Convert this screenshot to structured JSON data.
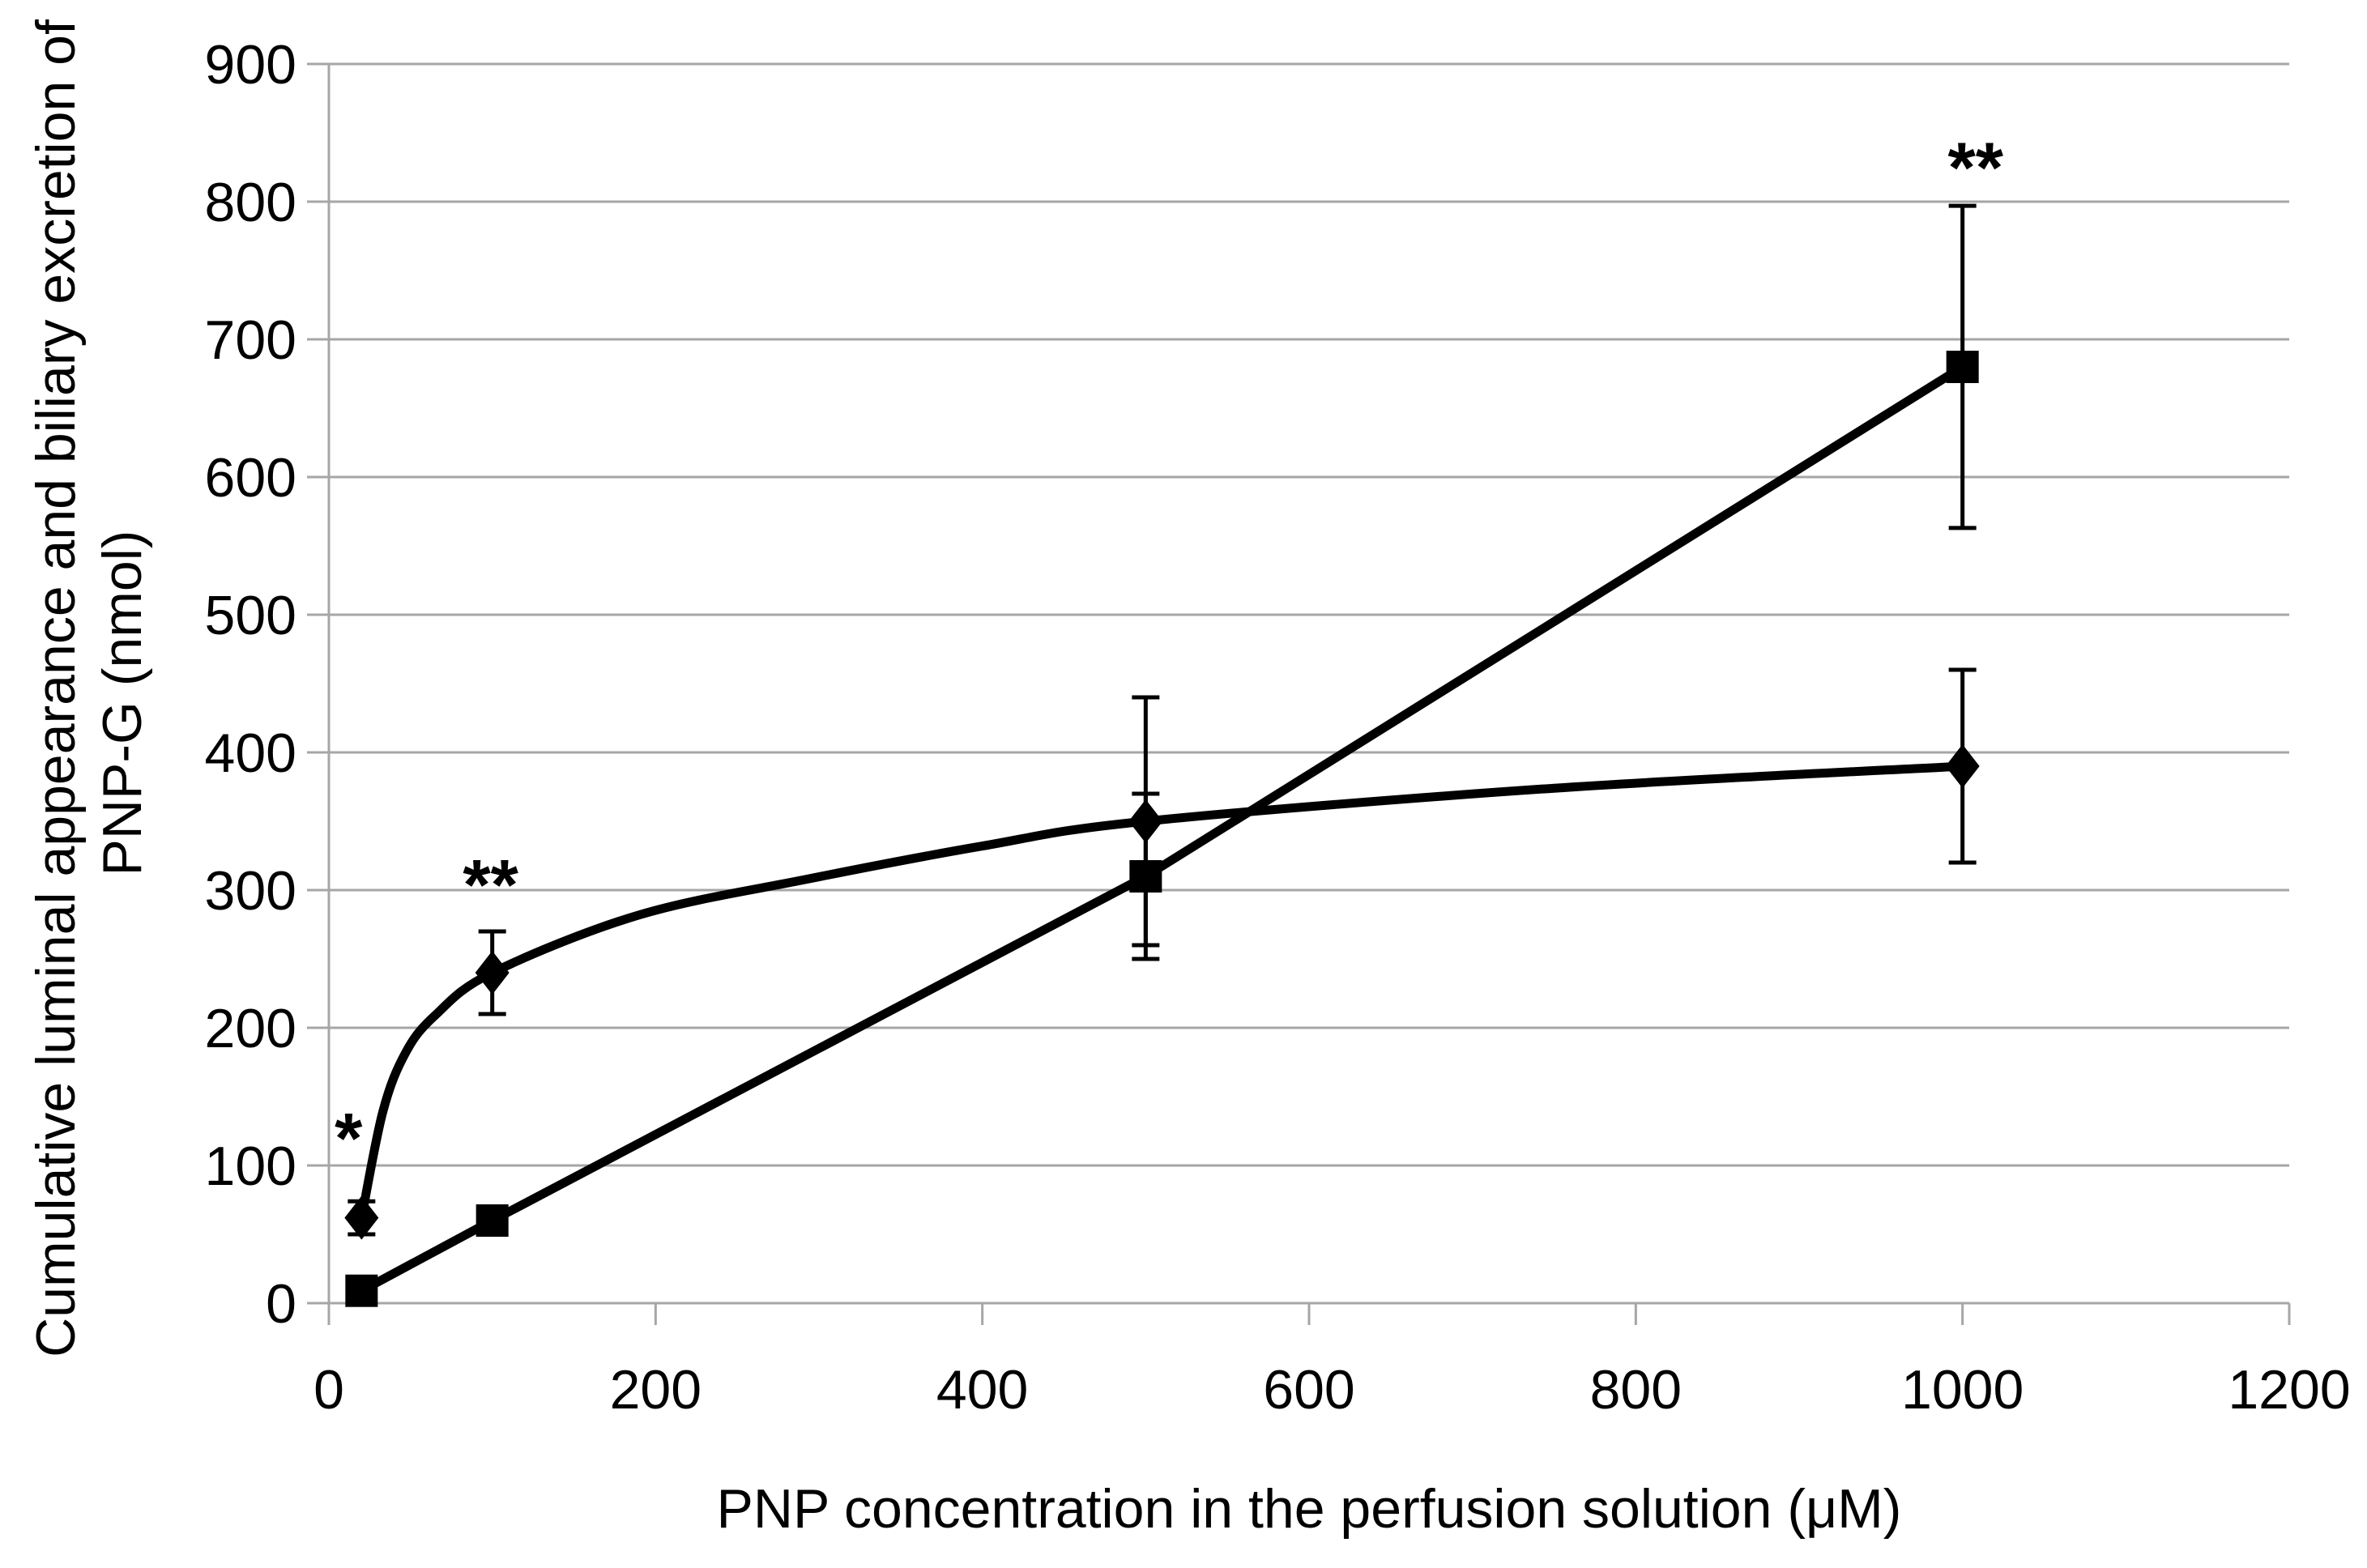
{
  "chart_data": {
    "type": "line",
    "title": "",
    "xlabel": "PNP concentration in the perfusion solution (μM)",
    "ylabel": "Cumulative luminal appearance and biliary excretion of PNP-G (nmol)",
    "ylabel_line1": "Cumulative luminal appearance and biliary excretion of",
    "ylabel_line2": "PNP-G (nmol)",
    "xlim": [
      0,
      1200
    ],
    "ylim": [
      0,
      900
    ],
    "x_ticks": [
      0,
      200,
      400,
      600,
      800,
      1000,
      1200
    ],
    "y_ticks": [
      0,
      100,
      200,
      300,
      400,
      500,
      600,
      700,
      800,
      900
    ],
    "grid": "horizontal-only",
    "legend": "none",
    "series": [
      {
        "name": "diamond-series",
        "marker": "diamond",
        "line_style": "smooth",
        "x": [
          20,
          100,
          500,
          1000
        ],
        "y": [
          62,
          240,
          350,
          390
        ],
        "error_plus": [
          12,
          30,
          90,
          70
        ],
        "error_minus": [
          12,
          30,
          90,
          70
        ],
        "curve_samples_x": [
          20,
          33,
          47,
          65,
          100,
          190,
          293,
          400,
          500,
          750,
          1000
        ],
        "curve_samples_y": [
          62,
          139,
          182,
          209,
          240,
          282,
          308,
          332,
          350,
          374,
          390
        ]
      },
      {
        "name": "square-series",
        "marker": "square",
        "line_style": "straight",
        "x": [
          20,
          100,
          500,
          1000
        ],
        "y": [
          9,
          60,
          310,
          680
        ],
        "error_plus": [
          0,
          0,
          60,
          117
        ],
        "error_minus": [
          0,
          0,
          60,
          117
        ],
        "curve_samples_x": [
          20,
          100,
          500,
          1000
        ],
        "curve_samples_y": [
          9,
          60,
          310,
          680
        ]
      }
    ],
    "annotations": [
      {
        "text": "*",
        "x": 12,
        "y": 131
      },
      {
        "text": "**",
        "x": 99,
        "y": 315
      },
      {
        "text": "**",
        "x": 1008,
        "y": 836
      }
    ],
    "colors": {
      "series": "#000000",
      "grid": "#a6a6a6",
      "axis": "#a6a6a6",
      "text": "#000000",
      "background": "#ffffff"
    }
  }
}
